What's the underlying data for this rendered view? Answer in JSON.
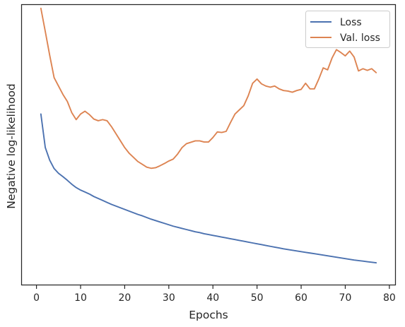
{
  "chart_data": {
    "type": "line",
    "title": "",
    "xlabel": "Epochs",
    "ylabel": "Negative log-likelihood",
    "xlim": [
      -3.3,
      81.3
    ],
    "ylim": [
      0,
      100
    ],
    "xticks": [
      0,
      10,
      20,
      30,
      40,
      50,
      60,
      70,
      80
    ],
    "xtick_labels": [
      "0",
      "10",
      "20",
      "30",
      "40",
      "50",
      "60",
      "70",
      "80"
    ],
    "yticks_shown": false,
    "grid": false,
    "legend_position": "top-right",
    "series": [
      {
        "name": "Loss",
        "color": "#4c72b0",
        "x": [
          1,
          2,
          3,
          4,
          5,
          6,
          7,
          8,
          9,
          10,
          11,
          12,
          13,
          14,
          15,
          16,
          17,
          18,
          19,
          20,
          21,
          22,
          23,
          24,
          25,
          26,
          27,
          28,
          29,
          30,
          31,
          32,
          33,
          34,
          35,
          36,
          37,
          38,
          39,
          40,
          41,
          42,
          43,
          44,
          45,
          46,
          47,
          48,
          49,
          50,
          51,
          52,
          53,
          54,
          55,
          56,
          57,
          58,
          59,
          60,
          61,
          62,
          63,
          64,
          65,
          66,
          67,
          68,
          69,
          70,
          71,
          72,
          73,
          74,
          75,
          76,
          77
        ],
        "values": [
          61.0,
          49.0,
          44.5,
          41.5,
          39.8,
          38.6,
          37.3,
          35.9,
          34.7,
          33.8,
          33.1,
          32.4,
          31.5,
          30.8,
          30.1,
          29.4,
          28.7,
          28.1,
          27.5,
          26.9,
          26.3,
          25.7,
          25.1,
          24.6,
          24.0,
          23.4,
          22.9,
          22.4,
          21.9,
          21.4,
          20.9,
          20.5,
          20.1,
          19.7,
          19.3,
          18.9,
          18.6,
          18.2,
          17.9,
          17.6,
          17.3,
          17.0,
          16.7,
          16.4,
          16.1,
          15.8,
          15.5,
          15.2,
          14.9,
          14.6,
          14.3,
          14.0,
          13.7,
          13.4,
          13.1,
          12.8,
          12.55,
          12.3,
          12.05,
          11.8,
          11.55,
          11.3,
          11.05,
          10.8,
          10.55,
          10.3,
          10.05,
          9.8,
          9.55,
          9.3,
          9.05,
          8.8,
          8.6,
          8.4,
          8.2,
          8.0,
          7.8
        ]
      },
      {
        "name": "Val. loss",
        "color": "#dd8452",
        "x": [
          1,
          2,
          3,
          4,
          5,
          6,
          7,
          8,
          9,
          10,
          11,
          12,
          13,
          14,
          15,
          16,
          17,
          18,
          19,
          20,
          21,
          22,
          23,
          24,
          25,
          26,
          27,
          28,
          29,
          30,
          31,
          32,
          33,
          34,
          35,
          36,
          37,
          38,
          39,
          40,
          41,
          42,
          43,
          44,
          45,
          46,
          47,
          48,
          49,
          50,
          51,
          52,
          53,
          54,
          55,
          56,
          57,
          58,
          59,
          60,
          61,
          62,
          63,
          64,
          65,
          66,
          67,
          68,
          69,
          70,
          71,
          72,
          73,
          74,
          75,
          76,
          77
        ],
        "values": [
          98.8,
          90.5,
          82.0,
          74.0,
          71.0,
          68.0,
          65.5,
          61.5,
          59.0,
          61.0,
          62.0,
          60.8,
          59.2,
          58.6,
          59.0,
          58.6,
          56.5,
          54.0,
          51.5,
          49.0,
          47.0,
          45.5,
          44.0,
          43.0,
          42.0,
          41.6,
          41.8,
          42.5,
          43.3,
          44.2,
          44.9,
          46.7,
          49.0,
          50.4,
          50.9,
          51.4,
          51.4,
          51.0,
          51.0,
          52.6,
          54.6,
          54.4,
          54.8,
          58.0,
          61.0,
          62.5,
          64.0,
          67.5,
          72.0,
          73.5,
          71.8,
          71.0,
          70.6,
          71.0,
          70.0,
          69.4,
          69.2,
          68.8,
          69.4,
          69.8,
          72.0,
          70.0,
          70.0,
          73.5,
          77.5,
          76.8,
          81.0,
          84.0,
          83.0,
          81.8,
          83.5,
          81.4,
          76.4,
          77.2,
          76.6,
          77.2,
          75.8
        ]
      }
    ]
  }
}
